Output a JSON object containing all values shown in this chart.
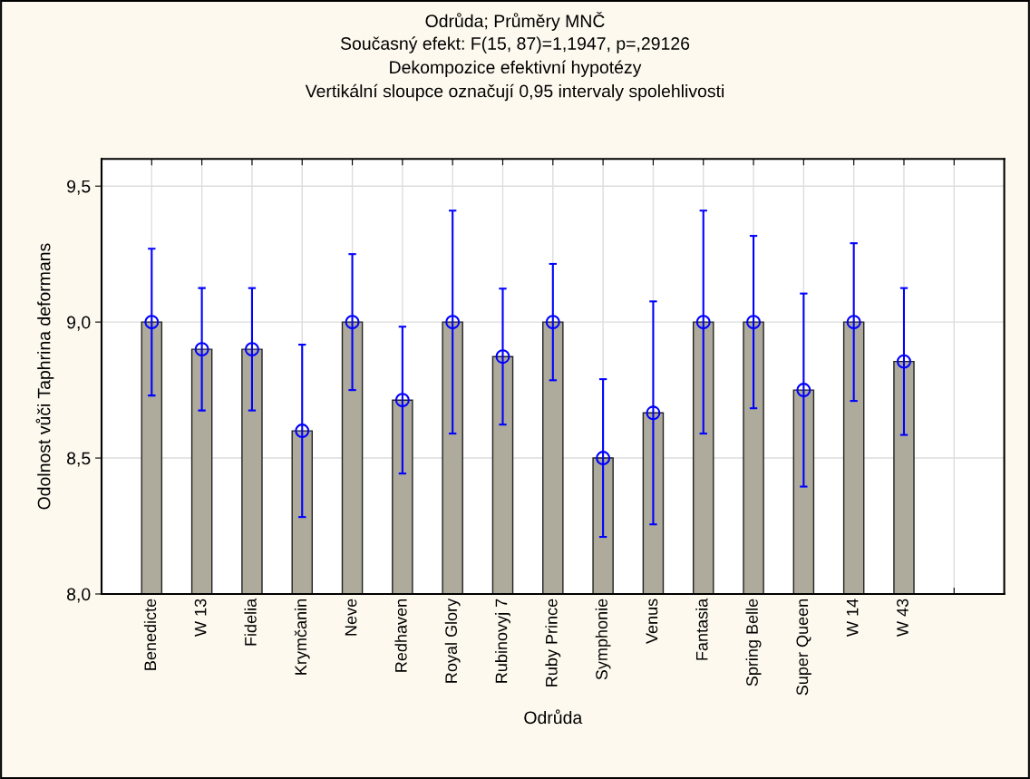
{
  "chart_data": {
    "type": "bar",
    "title": "Odrůda; Průměry MNČ",
    "subtitle": "Současný efekt: F(15, 87)=1,1947, p=,29126\nDekompozice efektivní hypotézy\nVertikální sloupce označují 0,95 intervaly spolehlivosti",
    "xlabel": "Odrůda",
    "ylabel": "Odolnost vůči Taphrina deformans",
    "categories": [
      "Benedicte",
      "W 13",
      "Fidelia",
      "Krymčanin",
      "Neve",
      "Redhaven",
      "Royal Glory",
      "Rubinovyj 7",
      "Ruby Prince",
      "Symphonie",
      "Venus",
      "Fantasia",
      "Spring Belle",
      "Super Queen",
      "W 14",
      "W 43",
      null
    ],
    "series": [
      {
        "color": "#aeab9c",
        "values": [
          9.0,
          8.9,
          8.9,
          8.6,
          9.0,
          8.713,
          9.0,
          8.873,
          9.0,
          8.5,
          8.666,
          9.0,
          9.0,
          8.75,
          9.0,
          8.855,
          null
        ],
        "errors": [
          0.27,
          0.225,
          0.225,
          0.317,
          0.25,
          0.27,
          0.41,
          0.25,
          0.214,
          0.29,
          0.41,
          0.41,
          0.317,
          0.355,
          0.29,
          0.27,
          null
        ]
      },
      {
        "type": "scatter",
        "color": "#0000ff",
        "values": [
          9.0,
          8.9,
          8.9,
          8.6,
          9.0,
          8.713,
          9.0,
          8.873,
          9.0,
          8.5,
          8.666,
          9.0,
          9.0,
          8.75,
          9.0,
          8.855,
          null
        ]
      }
    ],
    "ylim": [
      8.0,
      9.6
    ],
    "yticks": [
      {
        "value": 8.0,
        "label": "8,0"
      },
      {
        "value": 8.5,
        "label": "8,5"
      },
      {
        "value": 9.0,
        "label": "9,0"
      },
      {
        "value": 9.5,
        "label": "9,5"
      }
    ],
    "tick_labels": "xy",
    "grid": true,
    "marker": "circle"
  }
}
